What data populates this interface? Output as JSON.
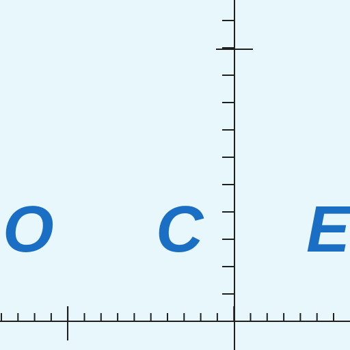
{
  "letters": [
    "O",
    "C",
    "E"
  ],
  "colors": {
    "background": "#e7f7fb",
    "letters": "#1a6fc4",
    "axes": "#1f1f1f"
  }
}
